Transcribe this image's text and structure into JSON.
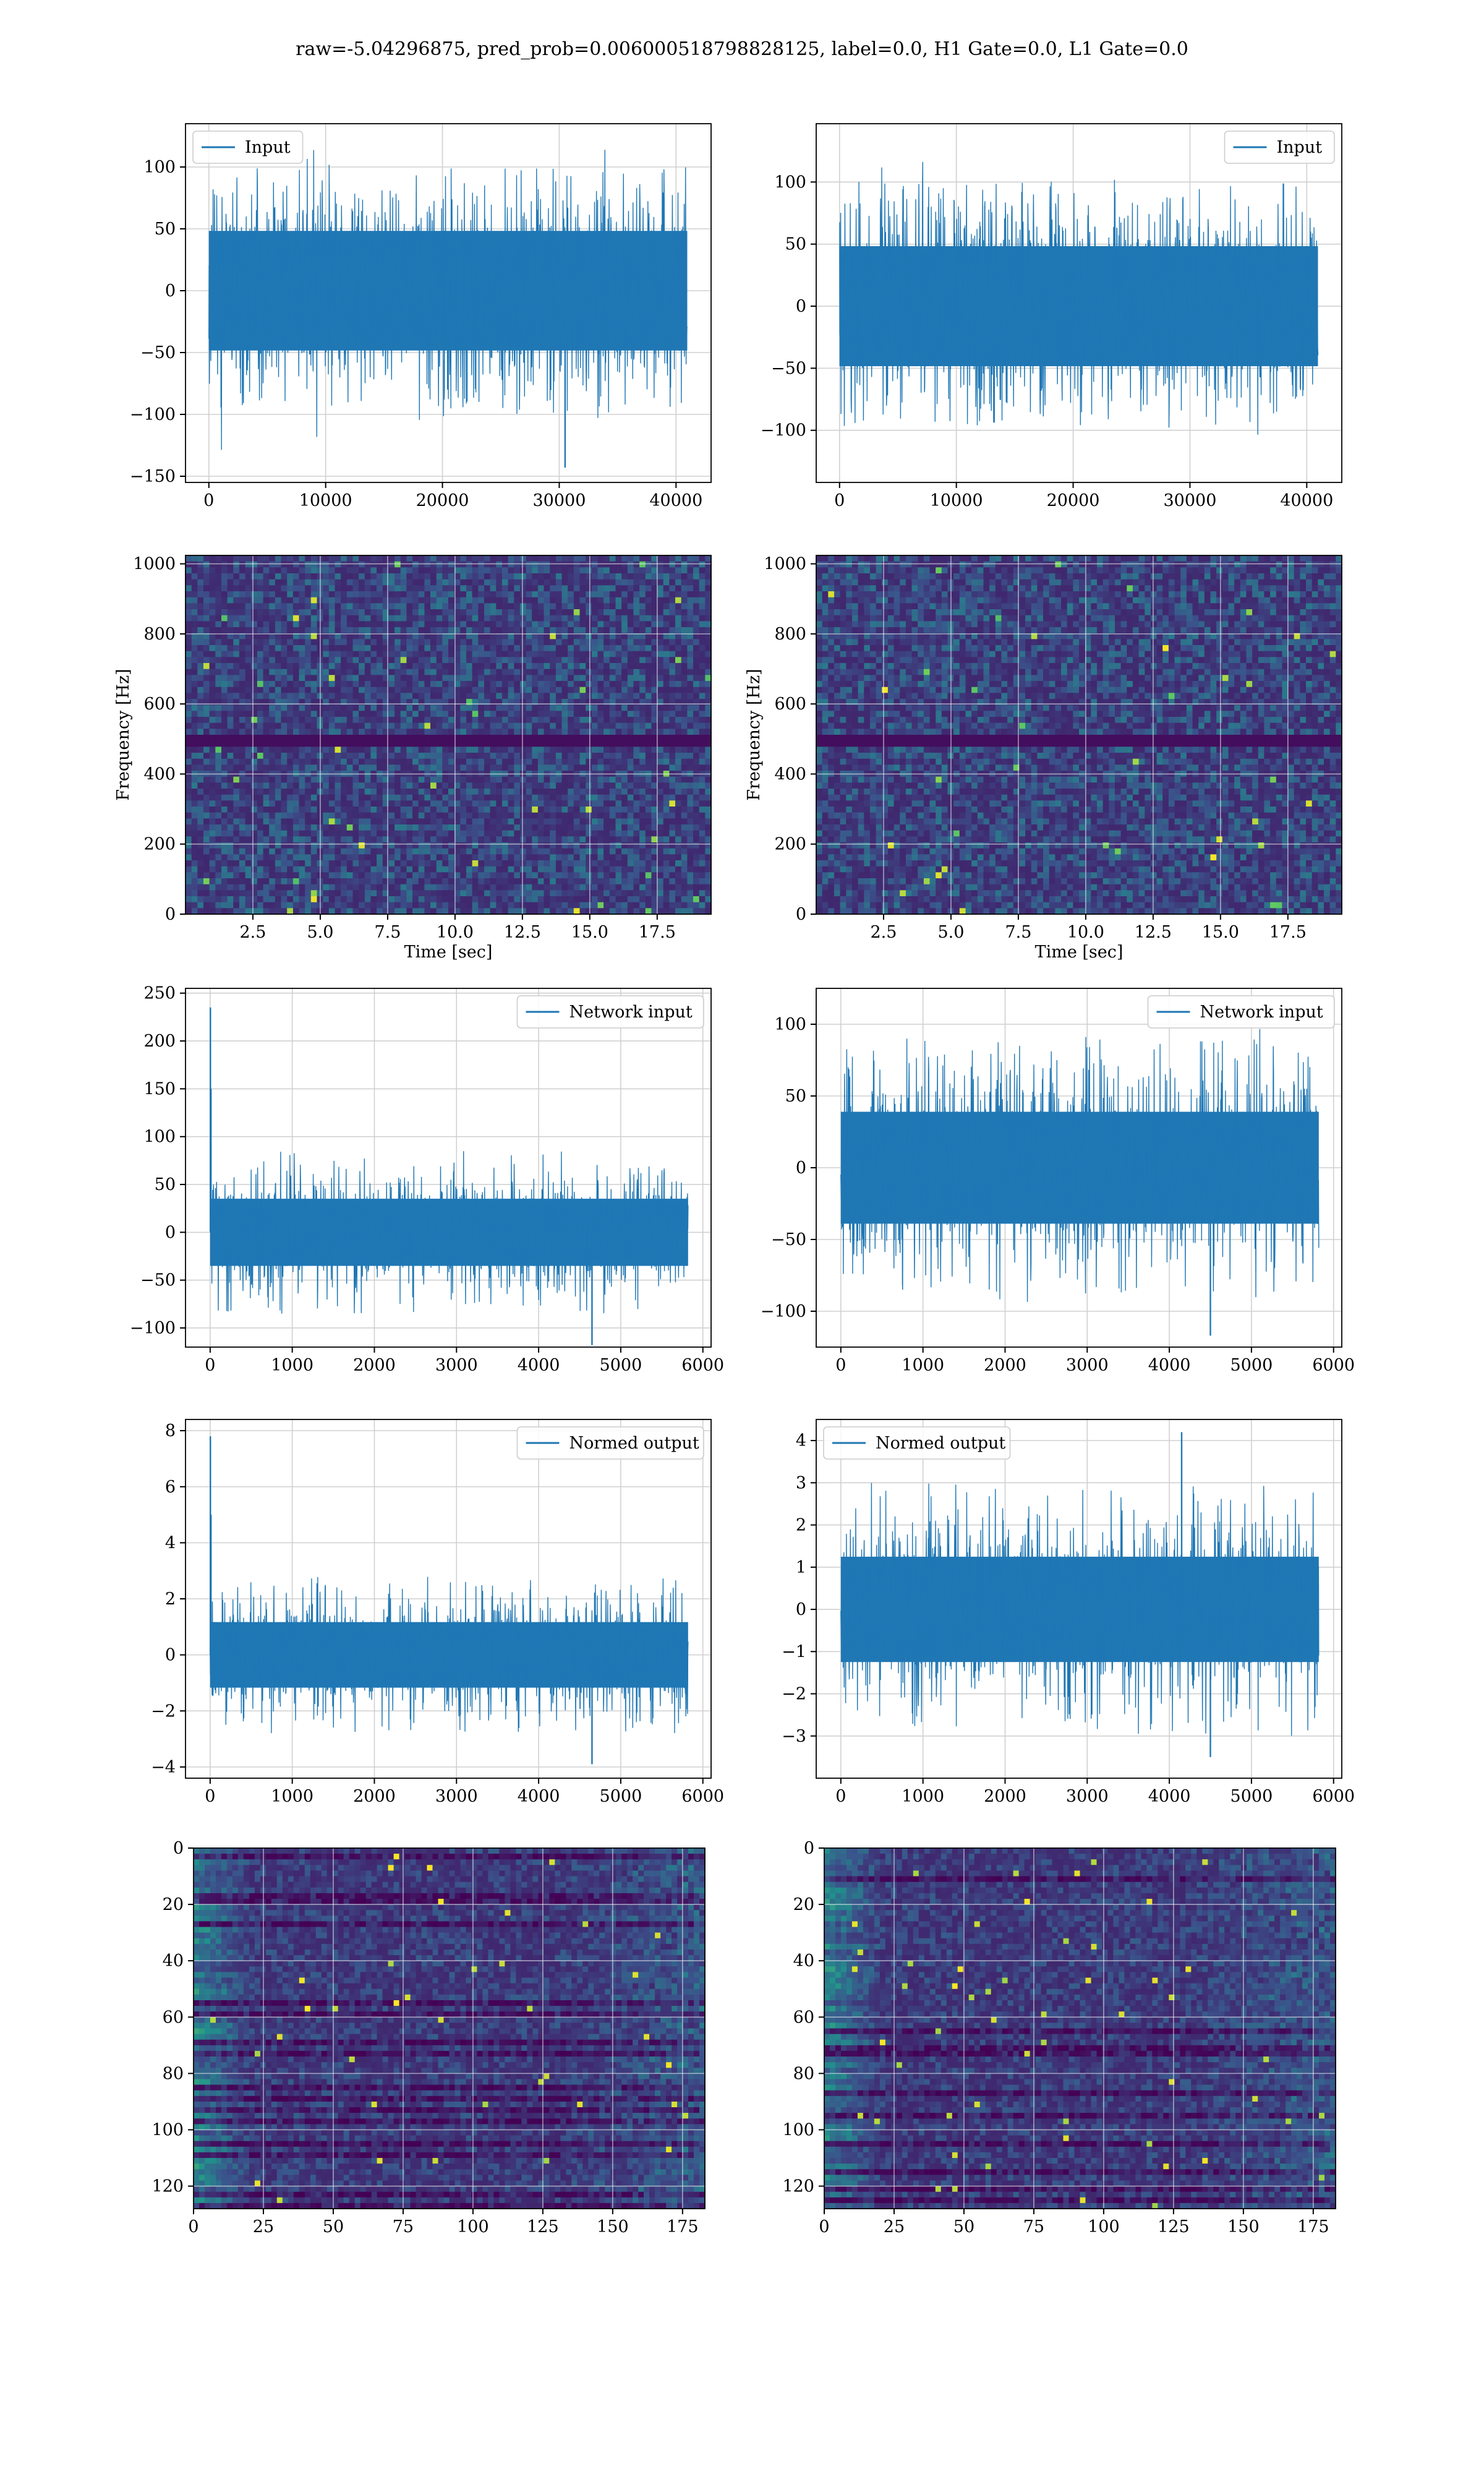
{
  "title": "raw=-5.04296875, pred_prob=0.006000518798828125, label=0.0, H1 Gate=0.0, L1 Gate=0.0",
  "colors": {
    "series": "#1f77b4",
    "grid": "#d0d0d0",
    "viridis_low": "#440154",
    "viridis_mid": "#31688e",
    "viridis_mid2": "#21918c",
    "viridis_high": "#5ec962",
    "viridis_top": "#fde725"
  },
  "chart_data": [
    {
      "type": "line",
      "panel": "row1-left",
      "legend": "Input",
      "legend_loc": "upper-left",
      "x_range": [
        0,
        40960
      ],
      "xlim": [
        -2000,
        43000
      ],
      "ylim": [
        -155,
        135
      ],
      "xticks": [
        "0",
        "10000",
        "20000",
        "30000",
        "40000"
      ],
      "xtick_values": [
        0,
        10000,
        20000,
        30000,
        40000
      ],
      "yticks": [
        "−150",
        "−100",
        "−50",
        "0",
        "50",
        "100"
      ],
      "ytick_values": [
        -150,
        -100,
        -50,
        0,
        50,
        100
      ],
      "noise": {
        "band": 62,
        "tail": 100,
        "max": 122,
        "min": -143,
        "seed": 11
      },
      "spikes": [
        [
          30500,
          -143
        ]
      ]
    },
    {
      "type": "line",
      "panel": "row1-right",
      "legend": "Input",
      "legend_loc": "upper-right",
      "x_range": [
        0,
        40960
      ],
      "xlim": [
        -2000,
        43000
      ],
      "ylim": [
        -142,
        147
      ],
      "xticks": [
        "0",
        "10000",
        "20000",
        "30000",
        "40000"
      ],
      "xtick_values": [
        0,
        10000,
        20000,
        30000,
        40000
      ],
      "yticks": [
        "−100",
        "−50",
        "0",
        "50",
        "100"
      ],
      "ytick_values": [
        -100,
        -50,
        0,
        50,
        100
      ],
      "noise": {
        "band": 62,
        "tail": 100,
        "max": 133,
        "min": -130,
        "seed": 23
      },
      "spikes": []
    },
    {
      "type": "heatmap",
      "panel": "row2-left",
      "xlabel": "Time [sec]",
      "ylabel": "Frequency [Hz]",
      "xlim": [
        0,
        19.5
      ],
      "ylim": [
        0,
        1024
      ],
      "xticks": [
        "2.5",
        "5.0",
        "7.5",
        "10.0",
        "12.5",
        "15.0",
        "17.5"
      ],
      "xtick_values": [
        2.5,
        5,
        7.5,
        10,
        12.5,
        15,
        17.5
      ],
      "yticks": [
        "0",
        "200",
        "400",
        "600",
        "800",
        "1000"
      ],
      "ytick_values": [
        0,
        200,
        400,
        600,
        800,
        1000
      ],
      "dark_band_hz": 500,
      "seed": 31
    },
    {
      "type": "heatmap",
      "panel": "row2-right",
      "xlabel": "Time [sec]",
      "ylabel": "Frequency [Hz]",
      "xlim": [
        0,
        19.5
      ],
      "ylim": [
        0,
        1024
      ],
      "xticks": [
        "2.5",
        "5.0",
        "7.5",
        "10.0",
        "12.5",
        "15.0",
        "17.5"
      ],
      "xtick_values": [
        2.5,
        5,
        7.5,
        10,
        12.5,
        15,
        17.5
      ],
      "yticks": [
        "0",
        "200",
        "400",
        "600",
        "800",
        "1000"
      ],
      "ytick_values": [
        0,
        200,
        400,
        600,
        800,
        1000
      ],
      "dark_band_hz": 500,
      "seed": 47
    },
    {
      "type": "line",
      "panel": "row3-left",
      "legend": "Network input",
      "legend_loc": "upper-right",
      "x_range": [
        0,
        5820
      ],
      "xlim": [
        -300,
        6100
      ],
      "ylim": [
        -120,
        255
      ],
      "xticks": [
        "0",
        "1000",
        "2000",
        "3000",
        "4000",
        "5000",
        "6000"
      ],
      "xtick_values": [
        0,
        1000,
        2000,
        3000,
        4000,
        5000,
        6000
      ],
      "yticks": [
        "−100",
        "−50",
        "0",
        "50",
        "100",
        "150",
        "200",
        "250"
      ],
      "ytick_values": [
        -100,
        -50,
        0,
        50,
        100,
        150,
        200,
        250
      ],
      "noise": {
        "band": 45,
        "tail": 85,
        "max": 105,
        "min": -118,
        "seed": 53
      },
      "spikes": [
        [
          3,
          235
        ],
        [
          10,
          150
        ],
        [
          4650,
          -118
        ]
      ]
    },
    {
      "type": "line",
      "panel": "row3-right",
      "legend": "Network input",
      "legend_loc": "upper-right",
      "x_range": [
        0,
        5820
      ],
      "xlim": [
        -300,
        6100
      ],
      "ylim": [
        -125,
        125
      ],
      "xticks": [
        "0",
        "1000",
        "2000",
        "3000",
        "4000",
        "5000",
        "6000"
      ],
      "xtick_values": [
        0,
        1000,
        2000,
        3000,
        4000,
        5000,
        6000
      ],
      "yticks": [
        "−100",
        "−50",
        "0",
        "50",
        "100"
      ],
      "ytick_values": [
        -100,
        -50,
        0,
        50,
        100
      ],
      "noise": {
        "band": 50,
        "tail": 95,
        "max": 112,
        "min": -117,
        "seed": 67
      },
      "spikes": [
        [
          4500,
          -117
        ]
      ]
    },
    {
      "type": "line",
      "panel": "row4-left",
      "legend": "Normed output",
      "legend_loc": "upper-right",
      "x_range": [
        0,
        5820
      ],
      "xlim": [
        -300,
        6100
      ],
      "ylim": [
        -4.4,
        8.4
      ],
      "xticks": [
        "0",
        "1000",
        "2000",
        "3000",
        "4000",
        "5000",
        "6000"
      ],
      "xtick_values": [
        0,
        1000,
        2000,
        3000,
        4000,
        5000,
        6000
      ],
      "yticks": [
        "−4",
        "−2",
        "0",
        "2",
        "4",
        "6",
        "8"
      ],
      "ytick_values": [
        -4,
        -2,
        0,
        2,
        4,
        6,
        8
      ],
      "noise": {
        "band": 1.5,
        "tail": 2.8,
        "max": 3.1,
        "min": -3.9,
        "seed": 71
      },
      "spikes": [
        [
          3,
          7.8
        ],
        [
          10,
          5.0
        ],
        [
          4650,
          -3.9
        ]
      ]
    },
    {
      "type": "line",
      "panel": "row4-right",
      "legend": "Normed output",
      "legend_loc": "upper-left",
      "x_range": [
        0,
        5820
      ],
      "xlim": [
        -300,
        6100
      ],
      "ylim": [
        -4.0,
        4.5
      ],
      "xticks": [
        "0",
        "1000",
        "2000",
        "3000",
        "4000",
        "5000",
        "6000"
      ],
      "xtick_values": [
        0,
        1000,
        2000,
        3000,
        4000,
        5000,
        6000
      ],
      "yticks": [
        "−3",
        "−2",
        "−1",
        "0",
        "1",
        "2",
        "3",
        "4"
      ],
      "ytick_values": [
        -3,
        -2,
        -1,
        0,
        1,
        2,
        3,
        4
      ],
      "noise": {
        "band": 1.6,
        "tail": 3.0,
        "max": 4.2,
        "min": -3.5,
        "seed": 83
      },
      "spikes": [
        [
          4150,
          4.2
        ],
        [
          4500,
          -3.5
        ]
      ]
    },
    {
      "type": "heatmap",
      "panel": "row5-left",
      "layout": "image",
      "xlim": [
        0,
        183
      ],
      "ylim": [
        128,
        0
      ],
      "xticks": [
        "0",
        "25",
        "50",
        "75",
        "100",
        "125",
        "150",
        "175"
      ],
      "xtick_values": [
        0,
        25,
        50,
        75,
        100,
        125,
        150,
        175
      ],
      "yticks": [
        "0",
        "20",
        "40",
        "60",
        "80",
        "100",
        "120"
      ],
      "ytick_values": [
        0,
        20,
        40,
        60,
        80,
        100,
        120
      ],
      "seed": 97
    },
    {
      "type": "heatmap",
      "panel": "row5-right",
      "layout": "image",
      "xlim": [
        0,
        183
      ],
      "ylim": [
        128,
        0
      ],
      "xticks": [
        "0",
        "25",
        "50",
        "75",
        "100",
        "125",
        "150",
        "175"
      ],
      "xtick_values": [
        0,
        25,
        50,
        75,
        100,
        125,
        150,
        175
      ],
      "yticks": [
        "0",
        "20",
        "40",
        "60",
        "80",
        "100",
        "120"
      ],
      "ytick_values": [
        0,
        20,
        40,
        60,
        80,
        100,
        120
      ],
      "seed": 113
    }
  ]
}
